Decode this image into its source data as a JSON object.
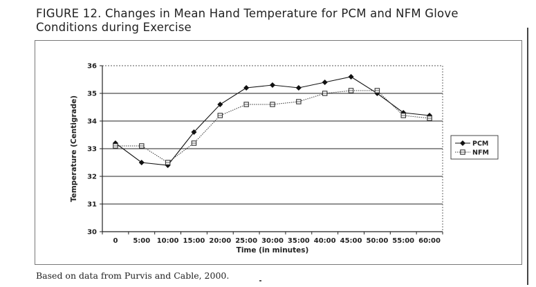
{
  "figure": {
    "title_line1": "FIGURE 12. Changes in Mean Hand Temperature for PCM and NFM Glove",
    "title_line2": "Conditions during Exercise",
    "caption": "Based on data from Purvis and Cable, 2000."
  },
  "chart_data": {
    "type": "line",
    "title": "",
    "xlabel": "Time (in minutes)",
    "ylabel": "Temperature (Centigrade)",
    "categories": [
      "0",
      "5:00",
      "10:00",
      "15:00",
      "20:00",
      "25:00",
      "30:00",
      "35:00",
      "40:00",
      "45:00",
      "50:00",
      "55:00",
      "60:00"
    ],
    "ylim": [
      30,
      36
    ],
    "yticks": [
      "30",
      "31",
      "32",
      "33",
      "34",
      "35",
      "36"
    ],
    "grid": "horizontal",
    "legend_position": "right",
    "series": [
      {
        "name": "PCM",
        "marker": "diamond",
        "line_style": "solid",
        "color": "#111111",
        "values": [
          33.2,
          32.5,
          32.4,
          33.6,
          34.6,
          35.2,
          35.3,
          35.2,
          35.4,
          35.6,
          35.0,
          34.3,
          34.2
        ]
      },
      {
        "name": "NFM",
        "marker": "square",
        "line_style": "dotted",
        "color": "#333333",
        "values": [
          33.1,
          33.1,
          32.5,
          33.2,
          34.2,
          34.6,
          34.6,
          34.7,
          35.0,
          35.1,
          35.1,
          34.2,
          34.1
        ]
      }
    ]
  }
}
